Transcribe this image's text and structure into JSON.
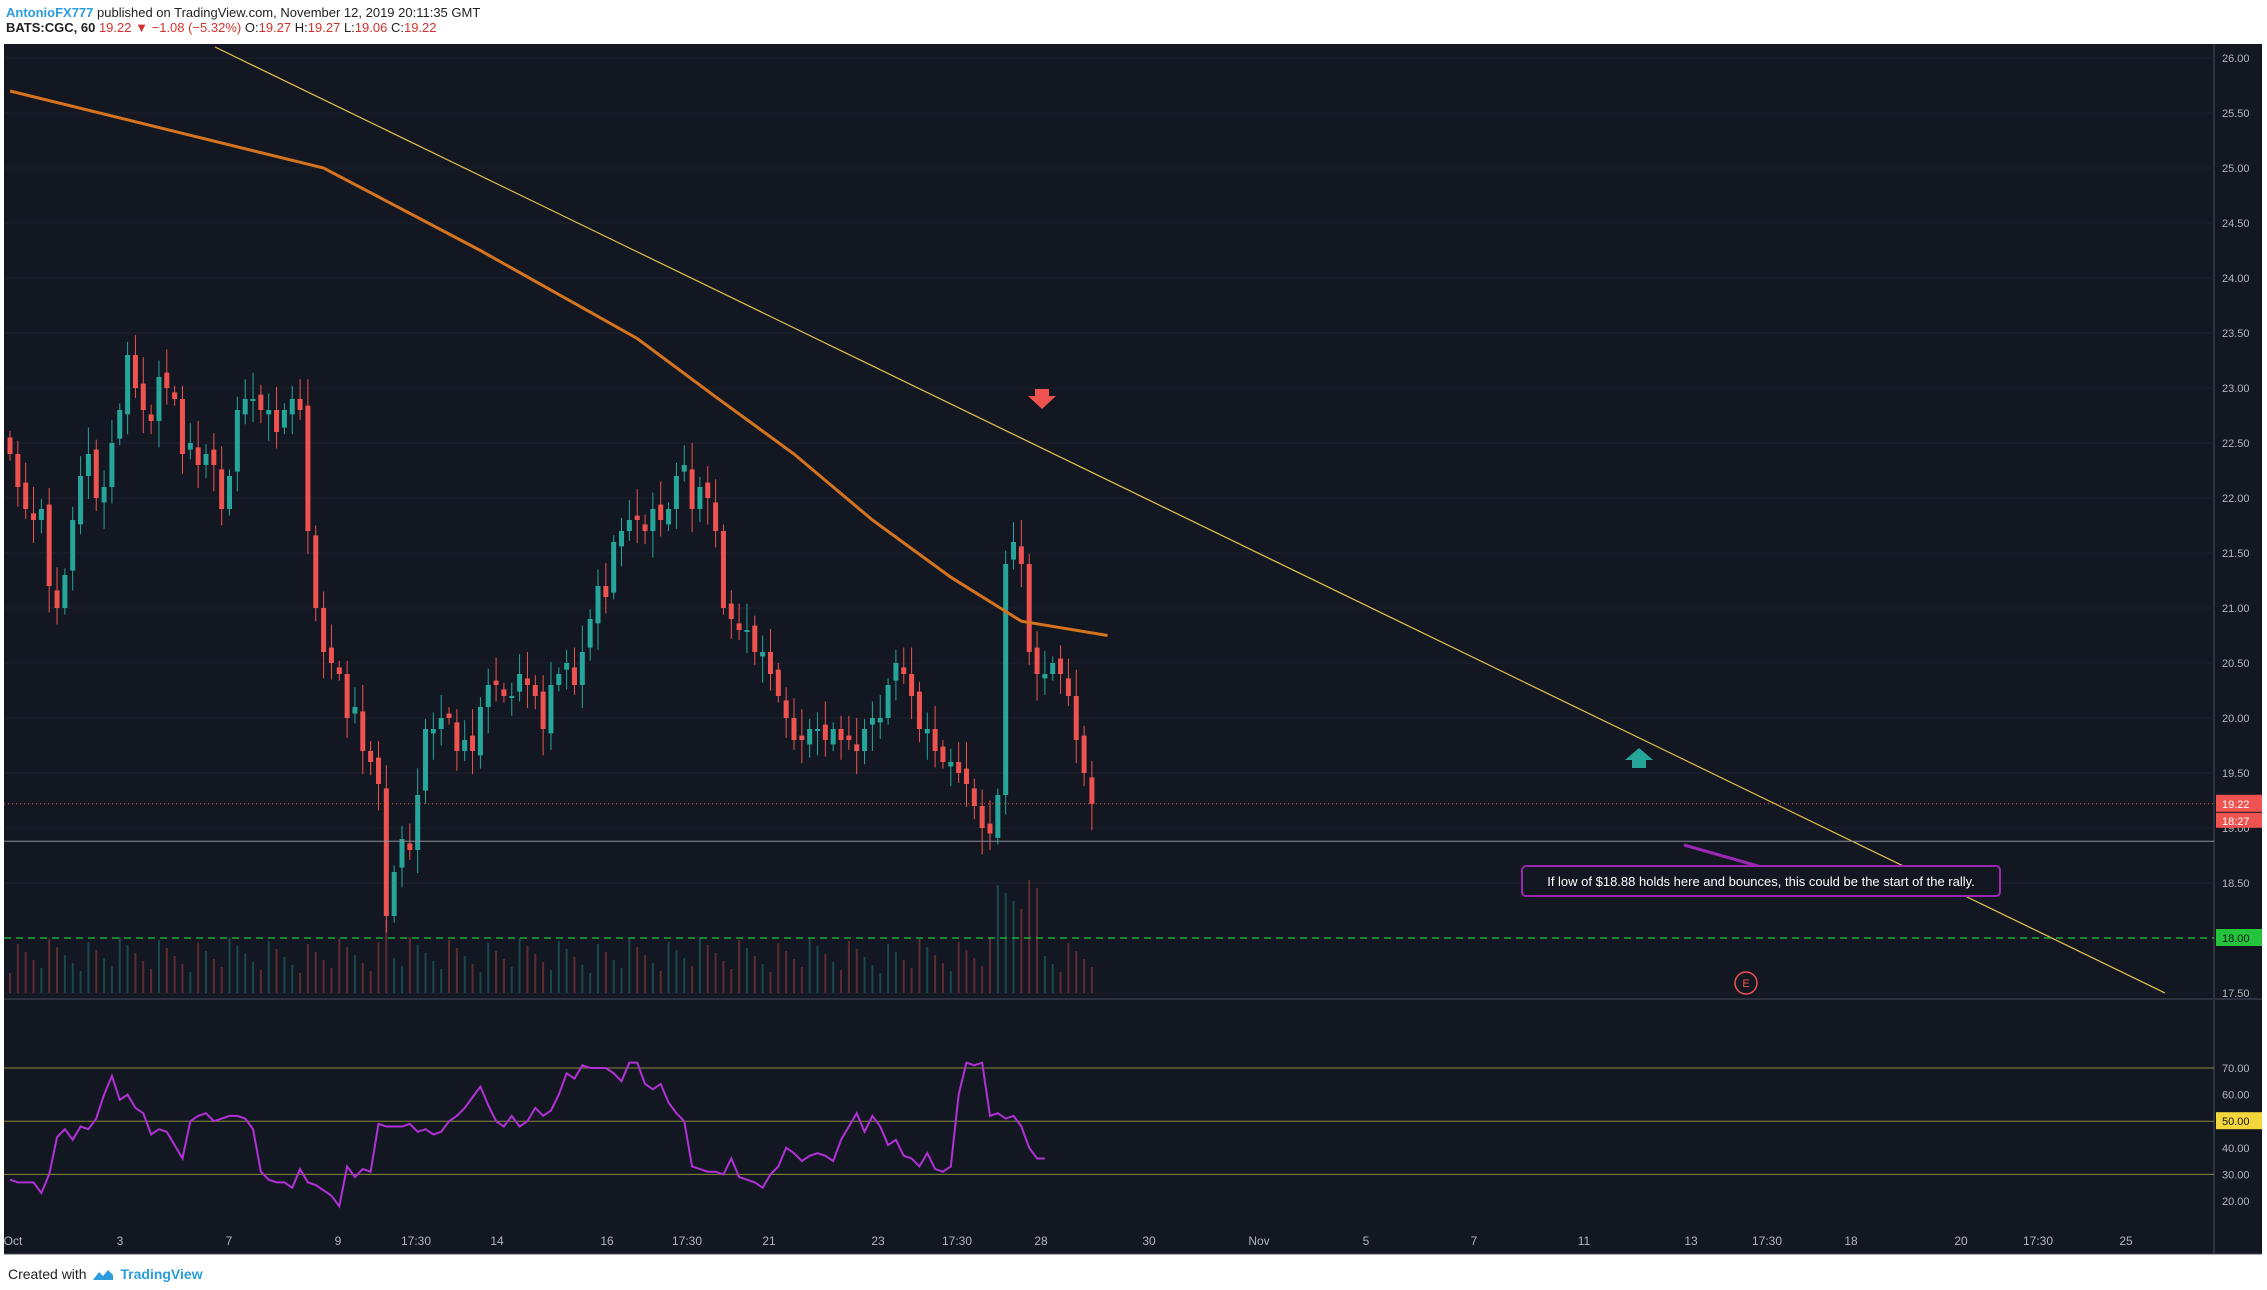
{
  "header": {
    "author": "AntonioFX777",
    "published": "published on TradingView.com, November 12, 2019 20:11:35 GMT",
    "symbol": "BATS:CGC, 60",
    "last": "19.22",
    "change": "−1.08 (−5.32%)",
    "o_label": "O:",
    "o": "19.27",
    "h_label": "H:",
    "h": "19.27",
    "l_label": "L:",
    "l": "19.06",
    "c_label": "C:",
    "c": "19.22"
  },
  "footer": {
    "created": "Created with",
    "brand": "TradingView"
  },
  "annotation": {
    "text": "If low of $18.88 holds here and bounces, this could be the start of the rally."
  },
  "earnings_marker": "E",
  "price_badges": {
    "last": "19.22",
    "countdown": "18:27",
    "support": "18.00"
  },
  "rsi_badge": "50.00",
  "colors": {
    "background": "#131722",
    "up": "#26a69a",
    "down": "#ef5350",
    "ma": "#d5731e",
    "trendline": "#e6c34a",
    "rsi": "#b131d6",
    "support": "#23c43c",
    "annotation_border": "#9c27b0",
    "arrow_down": "#ef5350",
    "arrow_up": "#26a69a"
  },
  "chart_data": [
    {
      "type": "candlestick",
      "title": "BATS:CGC, 60",
      "timeframe": "60",
      "x_ticks": [
        "Oct",
        "3",
        "7",
        "9",
        "17:30",
        "14",
        "16",
        "17:30",
        "21",
        "23",
        "17:30",
        "28",
        "30",
        "Nov",
        "5",
        "7",
        "11",
        "13",
        "17:30",
        "18",
        "20",
        "17:30",
        "25"
      ],
      "y_ticks": [
        "26.00",
        "25.50",
        "25.00",
        "24.50",
        "24.00",
        "23.50",
        "23.00",
        "22.50",
        "22.00",
        "21.50",
        "21.00",
        "20.50",
        "20.00",
        "19.50",
        "19.00",
        "18.50",
        "18.00",
        "17.50"
      ],
      "ylim": [
        17.5,
        26.1
      ],
      "close_series": [
        22.4,
        22.1,
        21.9,
        21.8,
        21.9,
        21.2,
        21.0,
        21.3,
        21.8,
        22.2,
        22.4,
        22.0,
        22.1,
        22.5,
        22.8,
        23.3,
        23.0,
        22.8,
        22.7,
        23.1,
        23.0,
        22.9,
        22.4,
        22.5,
        22.3,
        22.4,
        22.3,
        21.9,
        22.2,
        22.8,
        22.9,
        22.9,
        22.8,
        22.8,
        22.6,
        22.8,
        22.9,
        22.8,
        21.7,
        21.0,
        20.6,
        20.5,
        20.4,
        20.0,
        20.1,
        19.7,
        19.6,
        19.4,
        18.2,
        18.6,
        18.9,
        18.8,
        19.3,
        19.9,
        19.9,
        20.0,
        20.0,
        19.7,
        19.8,
        19.7,
        20.1,
        20.3,
        20.3,
        20.2,
        20.2,
        20.4,
        20.3,
        20.2,
        19.9,
        20.3,
        20.4,
        20.5,
        20.3,
        20.6,
        20.9,
        21.2,
        21.1,
        21.6,
        21.7,
        21.8,
        21.8,
        21.7,
        21.9,
        21.8,
        21.9,
        22.2,
        22.3,
        21.9,
        22.1,
        22.0,
        21.7,
        21.0,
        20.9,
        20.8,
        20.8,
        20.6,
        20.6,
        20.4,
        20.2,
        20.0,
        19.8,
        19.8,
        19.9,
        19.9,
        19.8,
        19.9,
        19.8,
        19.8,
        19.7,
        19.9,
        20.0,
        20.0,
        20.3,
        20.5,
        20.4,
        20.2,
        19.9,
        19.9,
        19.7,
        19.6,
        19.6,
        19.5,
        19.4,
        19.2,
        19.0,
        18.95,
        19.3,
        21.4,
        21.6,
        21.4,
        20.6,
        20.4,
        20.4,
        20.5,
        20.4,
        20.2,
        19.8,
        19.5,
        19.22
      ],
      "moving_average": {
        "type": "MA",
        "points_x_index": [
          0,
          40,
          60,
          80,
          90,
          100,
          110,
          120,
          129,
          140
        ],
        "values": [
          25.7,
          25.0,
          24.25,
          23.45,
          22.92,
          22.4,
          21.8,
          21.28,
          20.88,
          20.75
        ]
      },
      "trendline": {
        "from": [
          0,
          26.1
        ],
        "to": [
          195,
          17.5
        ]
      },
      "support_level": 18.0,
      "last_price": 19.22,
      "low_reference": 18.88,
      "volume_shown": true
    },
    {
      "type": "line",
      "title": "RSI",
      "y_ticks": [
        "70.00",
        "60.00",
        "50.00",
        "40.00",
        "30.00",
        "20.00"
      ],
      "ylim": [
        15,
        75
      ],
      "levels": [
        70,
        50,
        30
      ],
      "values": [
        28,
        27,
        27,
        27,
        23,
        30,
        44,
        47,
        43,
        48,
        47,
        51,
        60,
        67,
        58,
        60,
        55,
        53,
        45,
        47,
        46,
        41,
        36,
        50,
        52,
        53,
        50,
        51,
        52,
        52,
        51,
        47,
        31,
        28,
        27,
        27,
        25,
        32,
        27,
        26,
        24,
        22,
        18,
        33,
        29,
        32,
        31,
        49,
        48,
        48,
        48,
        49,
        46,
        47,
        45,
        46,
        50,
        52,
        55,
        59,
        63,
        56,
        50,
        48,
        52,
        48,
        50,
        55,
        52,
        54,
        60,
        68,
        66,
        71,
        70,
        70,
        70,
        68,
        65,
        72,
        72,
        64,
        62,
        64,
        57,
        53,
        50,
        33,
        32,
        31,
        31,
        30,
        36,
        29,
        28,
        27,
        25,
        30,
        33,
        40,
        38,
        35,
        37,
        38,
        37,
        35,
        43,
        48,
        53,
        46,
        52,
        48,
        41,
        43,
        37,
        36,
        33,
        38,
        32,
        31,
        33,
        60,
        72,
        71,
        72,
        52,
        53,
        51,
        52,
        48,
        40,
        36,
        36
      ]
    }
  ]
}
